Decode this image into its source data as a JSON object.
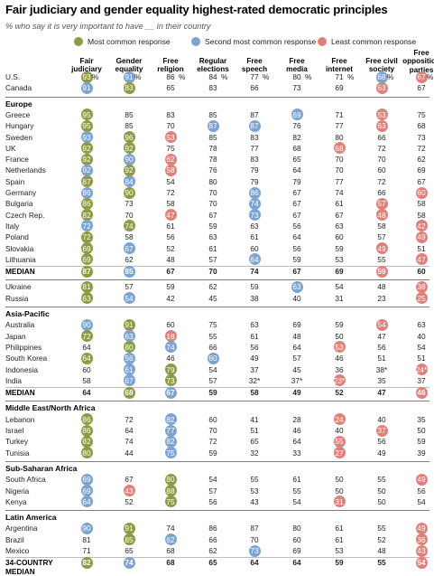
{
  "title": "Fair judiciary and gender equality highest-rated democratic principles",
  "subtitle": "% who say it is very important to have __ in their country",
  "colors": {
    "most": "#8f9a43",
    "second": "#7ca3d2",
    "least": "#e1807a"
  },
  "legend": [
    {
      "key": "most",
      "label": "Most common response"
    },
    {
      "key": "second",
      "label": "Second most common response"
    },
    {
      "key": "least",
      "label": "Least common response"
    }
  ],
  "chart_data": {
    "type": "table",
    "columns": [
      {
        "label_lines": [
          "Fair",
          "judiciary"
        ]
      },
      {
        "label_lines": [
          "Gender",
          "equality"
        ]
      },
      {
        "label_lines": [
          "Free",
          "religion"
        ]
      },
      {
        "label_lines": [
          "Regular",
          "elections"
        ]
      },
      {
        "label_lines": [
          "Free",
          "speech"
        ]
      },
      {
        "label_lines": [
          "Free",
          "media"
        ]
      },
      {
        "label_lines": [
          "Free",
          "internet"
        ]
      },
      {
        "label_lines": [
          "Free civil",
          "society"
        ]
      },
      {
        "label_lines": [
          "Free",
          "opposition",
          "parties"
        ]
      }
    ],
    "groups": [
      {
        "name": "",
        "rows": [
          {
            "label": "U.S.",
            "values": [
              "93",
              "91",
              "86",
              "84",
              "77",
              "80",
              "71",
              "68",
              "67"
            ],
            "codes": "msnnnnnsl",
            "pct": [
              0,
              1,
              2,
              3,
              4,
              5,
              6,
              7,
              8
            ]
          },
          {
            "label": "Canada",
            "values": [
              "91",
              "83",
              "65",
              "83",
              "66",
              "73",
              "69",
              "63",
              "67"
            ],
            "codes": "smnnnnnln"
          }
        ]
      },
      {
        "name": "Europe",
        "rows": [
          {
            "label": "Greece",
            "values": [
              "95",
              "85",
              "83",
              "85",
              "87",
              "69",
              "71",
              "53",
              "75"
            ],
            "codes": "mnnnnsnln"
          },
          {
            "label": "Hungary",
            "values": [
              "95",
              "85",
              "70",
              "87",
              "87",
              "76",
              "77",
              "63",
              "68"
            ],
            "codes": "mnnssnnln"
          },
          {
            "label": "Sweden",
            "values": [
              "93",
              "96",
              "53",
              "85",
              "83",
              "82",
              "80",
              "66",
              "73"
            ],
            "codes": "smlnnnnnn"
          },
          {
            "label": "UK",
            "values": [
              "92",
              "92",
              "75",
              "78",
              "77",
              "68",
              "68",
              "72",
              "72"
            ],
            "codes": "mmnnnnlnn"
          },
          {
            "label": "France",
            "values": [
              "92",
              "90",
              "62",
              "78",
              "83",
              "65",
              "70",
              "70",
              "62"
            ],
            "codes": "mslnnnnnn"
          },
          {
            "label": "Netherlands",
            "values": [
              "92",
              "92",
              "58",
              "76",
              "79",
              "64",
              "70",
              "60",
              "69"
            ],
            "codes": "smlnnnnnn"
          },
          {
            "label": "Spain",
            "values": [
              "87",
              "84",
              "54",
              "80",
              "79",
              "79",
              "77",
              "72",
              "67"
            ],
            "codes": "msannnnnn"
          },
          {
            "label": "Germany",
            "values": [
              "86",
              "90",
              "72",
              "70",
              "86",
              "67",
              "74",
              "66",
              "60"
            ],
            "codes": "smnnsnnnl"
          },
          {
            "label": "Bulgaria",
            "values": [
              "86",
              "73",
              "58",
              "70",
              "74",
              "67",
              "61",
              "57",
              "58"
            ],
            "codes": "mnnnsnnln"
          },
          {
            "label": "Czech Rep.",
            "values": [
              "82",
              "70",
              "47",
              "67",
              "73",
              "67",
              "67",
              "48",
              "58"
            ],
            "codes": "mnlnsnnln"
          },
          {
            "label": "Italy",
            "values": [
              "72",
              "74",
              "61",
              "59",
              "63",
              "56",
              "63",
              "58",
              "42"
            ],
            "codes": "smnnnnnnl"
          },
          {
            "label": "Poland",
            "values": [
              "72",
              "58",
              "56",
              "63",
              "61",
              "64",
              "60",
              "57",
              "49"
            ],
            "codes": "mnnnnnnnl"
          },
          {
            "label": "Slovakia",
            "values": [
              "69",
              "67",
              "52",
              "61",
              "60",
              "56",
              "59",
              "49",
              "51"
            ],
            "codes": "msnnnnnln"
          },
          {
            "label": "Lithuania",
            "values": [
              "69",
              "62",
              "48",
              "57",
              "64",
              "59",
              "53",
              "55",
              "47"
            ],
            "codes": "mnnnsnnnl"
          },
          {
            "label": "MEDIAN",
            "values": [
              "87",
              "85",
              "67",
              "70",
              "74",
              "67",
              "69",
              "59",
              "60"
            ],
            "codes": "msnnnnnln",
            "bold": true
          }
        ]
      },
      {
        "name": "",
        "rows": [
          {
            "label": "Ukraine",
            "values": [
              "81",
              "57",
              "59",
              "62",
              "59",
              "63",
              "54",
              "48",
              "38"
            ],
            "codes": "mnnnnsnnl"
          },
          {
            "label": "Russia",
            "values": [
              "63",
              "54",
              "42",
              "45",
              "38",
              "40",
              "31",
              "23",
              "25"
            ],
            "codes": "msnnnnnnl"
          }
        ]
      },
      {
        "name": "Asia-Pacific",
        "rows": [
          {
            "label": "Australia",
            "values": [
              "90",
              "91",
              "60",
              "75",
              "63",
              "69",
              "59",
              "54",
              "63"
            ],
            "codes": "smnnnnnln"
          },
          {
            "label": "Japan",
            "values": [
              "72",
              "63",
              "18",
              "55",
              "61",
              "48",
              "50",
              "47",
              "40"
            ],
            "codes": "mslnnnnnn"
          },
          {
            "label": "Philippines",
            "values": [
              "64",
              "80",
              "74",
              "66",
              "56",
              "64",
              "53",
              "56",
              "54"
            ],
            "codes": "nmsnnnlnn"
          },
          {
            "label": "South Korea",
            "values": [
              "64",
              "56",
              "46",
              "60",
              "49",
              "57",
              "46",
              "51",
              "51"
            ],
            "codes": "msnsnnnnn"
          },
          {
            "label": "Indonesia",
            "values": [
              "60",
              "61",
              "79",
              "54",
              "37",
              "45",
              "36",
              "38",
              "24"
            ],
            "codes": "nsmnnnnnl",
            "ast": [
              7,
              8
            ]
          },
          {
            "label": "India",
            "values": [
              "58",
              "67",
              "73",
              "57",
              "32",
              "37",
              "23",
              "35",
              "37"
            ],
            "codes": "nsmnnnlnn",
            "ast": [
              4,
              5,
              6
            ]
          },
          {
            "label": "MEDIAN",
            "values": [
              "64",
              "68",
              "67",
              "59",
              "58",
              "49",
              "52",
              "47",
              "46"
            ],
            "codes": "nmsnnnnnl",
            "bold": true
          }
        ]
      },
      {
        "name": "Middle East/North Africa",
        "rows": [
          {
            "label": "Lebanon",
            "values": [
              "86",
              "72",
              "82",
              "60",
              "41",
              "28",
              "24",
              "40",
              "35"
            ],
            "codes": "mnsnnnlnn"
          },
          {
            "label": "Israel",
            "values": [
              "86",
              "64",
              "77",
              "70",
              "51",
              "46",
              "40",
              "37",
              "50"
            ],
            "codes": "mnsnnnnln"
          },
          {
            "label": "Turkey",
            "values": [
              "82",
              "74",
              "82",
              "72",
              "65",
              "64",
              "55",
              "56",
              "59"
            ],
            "codes": "mnsnnnlnn"
          },
          {
            "label": "Tunisia",
            "values": [
              "80",
              "44",
              "75",
              "59",
              "32",
              "33",
              "27",
              "49",
              "39"
            ],
            "codes": "mnsnnnlnn"
          }
        ]
      },
      {
        "name": "Sub-Saharan Africa",
        "rows": [
          {
            "label": "South Africa",
            "values": [
              "69",
              "67",
              "80",
              "54",
              "55",
              "61",
              "50",
              "55",
              "49"
            ],
            "codes": "snmnnnnnl"
          },
          {
            "label": "Nigeria",
            "values": [
              "69",
              "43",
              "88",
              "57",
              "53",
              "55",
              "50",
              "50",
              "56"
            ],
            "codes": "slmnnnnnn"
          },
          {
            "label": "Kenya",
            "values": [
              "64",
              "52",
              "75",
              "56",
              "43",
              "54",
              "31",
              "50",
              "54"
            ],
            "codes": "snmnnnlnn"
          }
        ]
      },
      {
        "name": "Latin America",
        "rows": [
          {
            "label": "Argentina",
            "values": [
              "90",
              "91",
              "74",
              "86",
              "87",
              "80",
              "61",
              "55",
              "49"
            ],
            "codes": "smnnnnnnl"
          },
          {
            "label": "Brazil",
            "values": [
              "81",
              "85",
              "62",
              "66",
              "70",
              "60",
              "61",
              "52",
              "36"
            ],
            "codes": "nmsnnnnnl"
          },
          {
            "label": "Mexico",
            "values": [
              "71",
              "65",
              "68",
              "62",
              "73",
              "69",
              "53",
              "48",
              "43"
            ],
            "codes": "nnnnsnnnl"
          },
          {
            "label": "34-COUNTRY MEDIAN",
            "values": [
              "82",
              "74",
              "68",
              "65",
              "64",
              "64",
              "59",
              "55",
              "54"
            ],
            "codes": "msnnnnnnl",
            "bold": true
          }
        ]
      }
    ]
  }
}
